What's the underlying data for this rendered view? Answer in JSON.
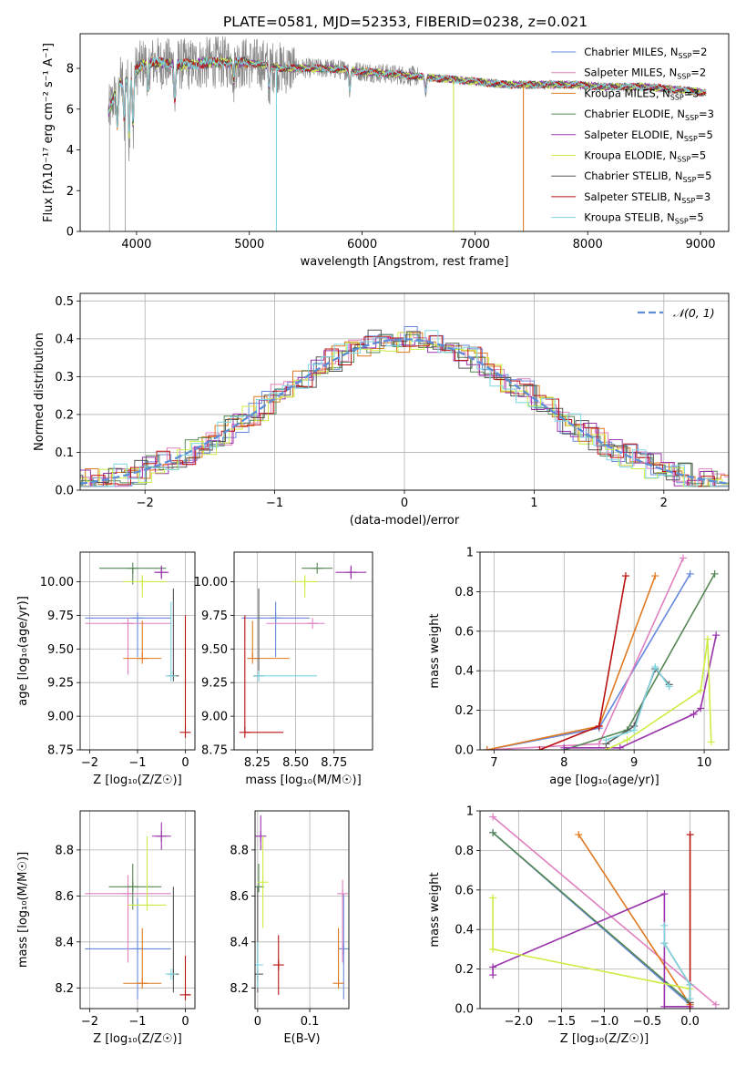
{
  "title": "PLATE=0581, MJD=52353, FIBERID=0238, z=0.021",
  "colors": {
    "Chabrier MILES": "#6688dd",
    "Salpeter MILES": "#e080c0",
    "Kroupa MILES": "#e07a20",
    "Chabrier ELODIE": "#558855",
    "Salpeter ELODIE": "#9933aa",
    "Kroupa ELODIE": "#ccee44",
    "Chabrier STELIB": "#555555",
    "Salpeter STELIB": "#bb1111",
    "Kroupa STELIB": "#7fd5e0",
    "data": "#888888"
  },
  "chart_data": [
    {
      "id": "spectrum",
      "type": "line",
      "xlabel": "wavelength [Angstrom, rest frame]",
      "ylabel": "Flux [fλ10⁻¹⁷ erg cm⁻² s⁻¹ A⁻¹]",
      "xlim": [
        3500,
        9250
      ],
      "ylim": [
        0,
        9.7
      ],
      "xticks": [
        4000,
        5000,
        6000,
        7000,
        8000,
        9000
      ],
      "yticks": [
        0,
        2,
        4,
        6,
        8
      ],
      "grid": false,
      "legend": "top-right",
      "series": [
        {
          "name": "Chabrier MILES, N_SSP=2",
          "key": "Chabrier MILES"
        },
        {
          "name": "Salpeter MILES, N_SSP=2",
          "key": "Salpeter MILES"
        },
        {
          "name": "Kroupa MILES, N_SSP=3",
          "key": "Kroupa MILES"
        },
        {
          "name": "Chabrier ELODIE, N_SSP=3",
          "key": "Chabrier ELODIE"
        },
        {
          "name": "Salpeter ELODIE, N_SSP=5",
          "key": "Salpeter ELODIE"
        },
        {
          "name": "Kroupa ELODIE, N_SSP=5",
          "key": "Kroupa ELODIE"
        },
        {
          "name": "Chabrier STELIB, N_SSP=5",
          "key": "Chabrier STELIB"
        },
        {
          "name": "Salpeter STELIB, N_SSP=3",
          "key": "Salpeter STELIB"
        },
        {
          "name": "Kroupa STELIB, N_SSP=5",
          "key": "Kroupa STELIB"
        }
      ],
      "continuum": {
        "x": [
          3750,
          3850,
          3950,
          4050,
          4150,
          4300,
          4500,
          4700,
          4900,
          5100,
          5300,
          5500,
          5700,
          5900,
          6100,
          6300,
          6500,
          6700,
          6900,
          7100,
          7300,
          7500,
          7700,
          7900,
          8100,
          8300,
          8500,
          8700,
          8900,
          9050
        ],
        "y": [
          5.8,
          7.3,
          7.6,
          8.2,
          8.3,
          8.2,
          8.2,
          8.3,
          8.3,
          8.2,
          8.0,
          8.0,
          8.0,
          7.9,
          7.8,
          7.7,
          7.6,
          7.5,
          7.4,
          7.3,
          7.2,
          7.2,
          7.2,
          7.2,
          7.1,
          7.1,
          7.1,
          7.0,
          6.9,
          6.8
        ]
      }
    },
    {
      "id": "residuals",
      "type": "line",
      "xlabel": "(data-model)/error",
      "ylabel": "Normed distribution",
      "xlim": [
        -2.5,
        2.5
      ],
      "ylim": [
        0,
        0.52
      ],
      "xticks": [
        -2,
        -1,
        0,
        1,
        2
      ],
      "yticks": [
        0.0,
        0.1,
        0.2,
        0.3,
        0.4,
        0.5
      ],
      "grid": true,
      "legend": "top-right",
      "reference": {
        "name": "𝒩(0, 1)",
        "mean": 0,
        "sigma": 1,
        "color": "#5b8ed6"
      }
    },
    {
      "id": "age-Z",
      "type": "scatter",
      "xlabel": "Z [log₁₀(Z/Z☉)]",
      "ylabel": "age  [log₁₀(age/yr)]",
      "xlim": [
        -2.2,
        0.2
      ],
      "ylim": [
        8.75,
        10.22
      ],
      "xticks": [
        -2,
        -1,
        0
      ],
      "yticks": [
        8.75,
        9.0,
        9.25,
        9.5,
        9.75,
        10.0
      ],
      "ytick_labels": [
        "8.75",
        "9.00",
        "9.25",
        "9.50",
        "9.75",
        "10.00"
      ],
      "grid": true,
      "points": [
        {
          "key": "Chabrier MILES",
          "x": -1.0,
          "xerr": [
            1.1,
            0.7
          ],
          "y": 9.73,
          "yerr": [
            0.29,
            0.0
          ]
        },
        {
          "key": "Salpeter MILES",
          "x": -1.2,
          "xerr": [
            0.9,
            0.9
          ],
          "y": 9.69,
          "yerr": [
            0.38,
            0.0
          ]
        },
        {
          "key": "Kroupa MILES",
          "x": -0.9,
          "xerr": [
            0.4,
            0.4
          ],
          "y": 9.43,
          "yerr": [
            0.0,
            0.28
          ]
        },
        {
          "key": "Chabrier ELODIE",
          "x": -1.1,
          "xerr": [
            0.7,
            0.7
          ],
          "y": 10.1,
          "yerr": [
            0.12,
            0.0
          ]
        },
        {
          "key": "Salpeter ELODIE",
          "x": -0.5,
          "xerr": [
            0.15,
            0.15
          ],
          "y": 10.07,
          "yerr": [
            0.05,
            0.05
          ]
        },
        {
          "key": "Kroupa ELODIE",
          "x": -0.9,
          "xerr": [
            0.4,
            0.5
          ],
          "y": 10.0,
          "yerr": [
            0.12,
            0.05
          ]
        },
        {
          "key": "Chabrier STELIB",
          "x": -0.25,
          "xerr": [
            0.05,
            0.05
          ],
          "y": 9.3,
          "yerr": [
            0.0,
            0.65
          ]
        },
        {
          "key": "Salpeter STELIB",
          "x": 0.0,
          "xerr": [
            0.0,
            0.0
          ],
          "y": 8.88,
          "yerr": [
            0.0,
            0.87
          ]
        },
        {
          "key": "Kroupa STELIB",
          "x": -0.3,
          "xerr": [
            0.0,
            0.0
          ],
          "y": 9.3,
          "yerr": [
            0.0,
            0.55
          ]
        }
      ]
    },
    {
      "id": "age-mass",
      "type": "scatter",
      "xlabel": "mass [log₁₀(M/M☉)]",
      "xlim": [
        8.1,
        9.0
      ],
      "ylim": [
        8.75,
        10.22
      ],
      "xticks": [
        8.25,
        8.5,
        8.75
      ],
      "xtick_labels": [
        "8.25",
        "8.50",
        "8.75"
      ],
      "yticks": [
        8.75,
        9.0,
        9.25,
        9.5,
        9.75,
        10.0
      ],
      "ytick_labels": [
        "8.75",
        "9.00",
        "9.25",
        "9.50",
        "9.75",
        "10.00"
      ],
      "grid": true,
      "points": [
        {
          "key": "Chabrier MILES",
          "x": 8.37,
          "xerr": [
            0.22,
            0.22
          ],
          "y": 9.73,
          "yerr": [
            0.29,
            0.12
          ]
        },
        {
          "key": "Salpeter MILES",
          "x": 8.61,
          "xerr": [
            0.3,
            0.08
          ],
          "y": 9.69,
          "yerr": [
            0.0,
            0.0
          ]
        },
        {
          "key": "Kroupa MILES",
          "x": 8.22,
          "xerr": [
            0.0,
            0.24
          ],
          "y": 9.43,
          "yerr": [
            0.0,
            0.28
          ]
        },
        {
          "key": "Chabrier ELODIE",
          "x": 8.64,
          "xerr": [
            0.1,
            0.1
          ],
          "y": 10.1,
          "yerr": [
            0.0,
            0.0
          ]
        },
        {
          "key": "Salpeter ELODIE",
          "x": 8.86,
          "xerr": [
            0.1,
            0.1
          ],
          "y": 10.07,
          "yerr": [
            0.05,
            0.05
          ]
        },
        {
          "key": "Kroupa ELODIE",
          "x": 8.56,
          "xerr": [
            0.08,
            0.08
          ],
          "y": 10.0,
          "yerr": [
            0.12,
            0.05
          ]
        },
        {
          "key": "Chabrier STELIB",
          "x": 8.26,
          "xerr": [
            0.0,
            0.0
          ],
          "y": 9.3,
          "yerr": [
            0.0,
            0.65
          ]
        },
        {
          "key": "Salpeter STELIB",
          "x": 8.17,
          "xerr": [
            0.0,
            0.25
          ],
          "y": 8.88,
          "yerr": [
            0.0,
            0.87
          ]
        },
        {
          "key": "Kroupa STELIB",
          "x": 8.26,
          "xerr": [
            0.0,
            0.38
          ],
          "y": 9.3,
          "yerr": [
            0.0,
            0.0
          ]
        }
      ]
    },
    {
      "id": "massweight-age",
      "type": "line",
      "xlabel": "age  [log₁₀(age/yr)]",
      "ylabel": "mass weight",
      "xlim": [
        6.8,
        10.35
      ],
      "ylim": [
        0,
        1.0
      ],
      "xticks": [
        7,
        8,
        9,
        10
      ],
      "yticks": [
        0.0,
        0.2,
        0.4,
        0.6,
        0.8,
        1.0
      ],
      "grid": true,
      "series": [
        {
          "key": "Chabrier MILES",
          "x": [
            6.9,
            8.5,
            9.8
          ],
          "y": [
            0.0,
            0.11,
            0.89
          ]
        },
        {
          "key": "Salpeter MILES",
          "x": [
            6.9,
            8.5,
            9.7
          ],
          "y": [
            0.0,
            0.03,
            0.97
          ]
        },
        {
          "key": "Kroupa MILES",
          "x": [
            6.9,
            8.5,
            9.3
          ],
          "y": [
            0.0,
            0.12,
            0.88
          ]
        },
        {
          "key": "Chabrier ELODIE",
          "x": [
            8.0,
            8.9,
            10.15
          ],
          "y": [
            0.0,
            0.1,
            0.89
          ]
        },
        {
          "key": "Salpeter ELODIE",
          "x": [
            8.0,
            8.8,
            9.85,
            9.95,
            10.17
          ],
          "y": [
            0.01,
            0.01,
            0.18,
            0.21,
            0.58
          ]
        },
        {
          "key": "Kroupa ELODIE",
          "x": [
            8.6,
            8.9,
            9.95,
            10.05,
            10.1
          ],
          "y": [
            0.0,
            0.05,
            0.3,
            0.56,
            0.04
          ]
        },
        {
          "key": "Chabrier STELIB",
          "x": [
            8.6,
            9.0,
            9.3,
            9.5
          ],
          "y": [
            0.03,
            0.12,
            0.41,
            0.33
          ]
        },
        {
          "key": "Salpeter STELIB",
          "x": [
            7.65,
            8.5,
            8.88
          ],
          "y": [
            0.0,
            0.12,
            0.88
          ]
        },
        {
          "key": "Kroupa STELIB",
          "x": [
            8.6,
            9.0,
            9.3,
            9.5
          ],
          "y": [
            0.05,
            0.1,
            0.42,
            0.32
          ]
        }
      ]
    },
    {
      "id": "mass-Z",
      "type": "scatter",
      "xlabel": "Z [log₁₀(Z/Z☉)]",
      "ylabel": "mass [log₁₀(M/M☉)]",
      "xlim": [
        -2.2,
        0.2
      ],
      "ylim": [
        8.11,
        8.97
      ],
      "xticks": [
        -2,
        -1,
        0
      ],
      "yticks": [
        8.2,
        8.4,
        8.6,
        8.8
      ],
      "grid": true,
      "points": [
        {
          "key": "Chabrier MILES",
          "x": -1.0,
          "xerr": [
            1.1,
            0.7
          ],
          "y": 8.37,
          "yerr": [
            0.22,
            0.22
          ]
        },
        {
          "key": "Salpeter MILES",
          "x": -1.2,
          "xerr": [
            0.9,
            0.9
          ],
          "y": 8.61,
          "yerr": [
            0.3,
            0.08
          ]
        },
        {
          "key": "Kroupa MILES",
          "x": -0.9,
          "xerr": [
            0.4,
            0.4
          ],
          "y": 8.22,
          "yerr": [
            0.0,
            0.24
          ]
        },
        {
          "key": "Chabrier ELODIE",
          "x": -1.1,
          "xerr": [
            0.5,
            0.6
          ],
          "y": 8.64,
          "yerr": [
            0.1,
            0.1
          ]
        },
        {
          "key": "Salpeter ELODIE",
          "x": -0.5,
          "xerr": [
            0.2,
            0.2
          ],
          "y": 8.86,
          "yerr": [
            0.06,
            0.06
          ]
        },
        {
          "key": "Kroupa ELODIE",
          "x": -0.8,
          "xerr": [
            0.4,
            0.4
          ],
          "y": 8.56,
          "yerr": [
            0.0,
            0.3
          ]
        },
        {
          "key": "Chabrier STELIB",
          "x": -0.25,
          "xerr": [
            0.0,
            0.0
          ],
          "y": 8.26,
          "yerr": [
            0.08,
            0.38
          ]
        },
        {
          "key": "Salpeter STELIB",
          "x": 0.0,
          "xerr": [
            0.0,
            0.1
          ],
          "y": 8.17,
          "yerr": [
            0.0,
            0.17
          ]
        },
        {
          "key": "Kroupa STELIB",
          "x": -0.3,
          "xerr": [
            0.0,
            0.0
          ],
          "y": 8.26,
          "yerr": [
            0.0,
            0.0
          ]
        }
      ]
    },
    {
      "id": "mass-EBV",
      "type": "scatter",
      "xlabel": "E(B-V)",
      "xlim": [
        -0.005,
        0.175
      ],
      "ylim": [
        8.11,
        8.97
      ],
      "xticks": [
        0.0,
        0.1
      ],
      "yticks": [
        8.2,
        8.4,
        8.6,
        8.8
      ],
      "grid": true,
      "points": [
        {
          "key": "Chabrier MILES",
          "x": 0.165,
          "y": 8.37,
          "yerr": [
            0.22,
            0.24
          ]
        },
        {
          "key": "Salpeter MILES",
          "x": 0.163,
          "y": 8.61,
          "yerr": [
            0.3,
            0.06
          ]
        },
        {
          "key": "Kroupa MILES",
          "x": 0.155,
          "y": 8.22,
          "yerr": [
            0.0,
            0.24
          ]
        },
        {
          "key": "Chabrier ELODIE",
          "x": 0.002,
          "y": 8.64,
          "yerr": [
            0.0,
            0.1
          ]
        },
        {
          "key": "Salpeter ELODIE",
          "x": 0.006,
          "y": 8.86,
          "yerr": [
            0.06,
            0.09
          ]
        },
        {
          "key": "Kroupa ELODIE",
          "x": 0.01,
          "y": 8.66,
          "yerr": [
            0.2,
            0.2
          ]
        },
        {
          "key": "Chabrier STELIB",
          "x": 0.0,
          "y": 8.26,
          "yerr": [
            0.08,
            0.38
          ]
        },
        {
          "key": "Salpeter STELIB",
          "x": 0.04,
          "y": 8.3,
          "yerr": [
            0.13,
            0.13
          ]
        },
        {
          "key": "Kroupa STELIB",
          "x": 0.0,
          "y": 8.3,
          "yerr": [
            0.1,
            0.1
          ]
        }
      ]
    },
    {
      "id": "massweight-Z",
      "type": "line",
      "xlabel": "Z [log₁₀(Z/Z☉)]",
      "ylabel": "mass weight",
      "xlim": [
        -2.45,
        0.45
      ],
      "ylim": [
        0,
        1.0
      ],
      "xticks": [
        -2.0,
        -1.5,
        -1.0,
        -0.5,
        0.0
      ],
      "xtick_labels": [
        "−2.0",
        "−1.5",
        "−1.0",
        "−0.5",
        "0.0"
      ],
      "yticks": [
        0.0,
        0.2,
        0.4,
        0.6,
        0.8,
        1.0
      ],
      "grid": true,
      "series": [
        {
          "key": "Chabrier MILES",
          "x": [
            -2.3,
            0.0
          ],
          "y": [
            0.89,
            0.02
          ]
        },
        {
          "key": "Salpeter MILES",
          "x": [
            -2.3,
            0.3
          ],
          "y": [
            0.97,
            0.02
          ]
        },
        {
          "key": "Kroupa MILES",
          "x": [
            -1.3,
            0.0
          ],
          "y": [
            0.88,
            0.02
          ]
        },
        {
          "key": "Chabrier ELODIE",
          "x": [
            -2.3,
            0.0
          ],
          "y": [
            0.89,
            0.03
          ]
        },
        {
          "key": "Salpeter ELODIE",
          "x": [
            -2.3,
            -2.3,
            -0.3,
            -0.3,
            0.0
          ],
          "y": [
            0.17,
            0.21,
            0.58,
            0.01,
            0.01
          ]
        },
        {
          "key": "Kroupa ELODIE",
          "x": [
            -2.3,
            -2.3,
            0.0
          ],
          "y": [
            0.56,
            0.3,
            0.1
          ]
        },
        {
          "key": "Chabrier STELIB",
          "x": [
            -0.3,
            0.0,
            0.0
          ],
          "y": [
            0.33,
            0.12,
            0.03
          ]
        },
        {
          "key": "Salpeter STELIB",
          "x": [
            0.0,
            0.0
          ],
          "y": [
            0.88,
            0.0
          ]
        },
        {
          "key": "Kroupa STELIB",
          "x": [
            -0.3,
            -0.3,
            0.0,
            0.0
          ],
          "y": [
            0.42,
            0.33,
            0.12,
            0.05
          ]
        }
      ]
    }
  ]
}
